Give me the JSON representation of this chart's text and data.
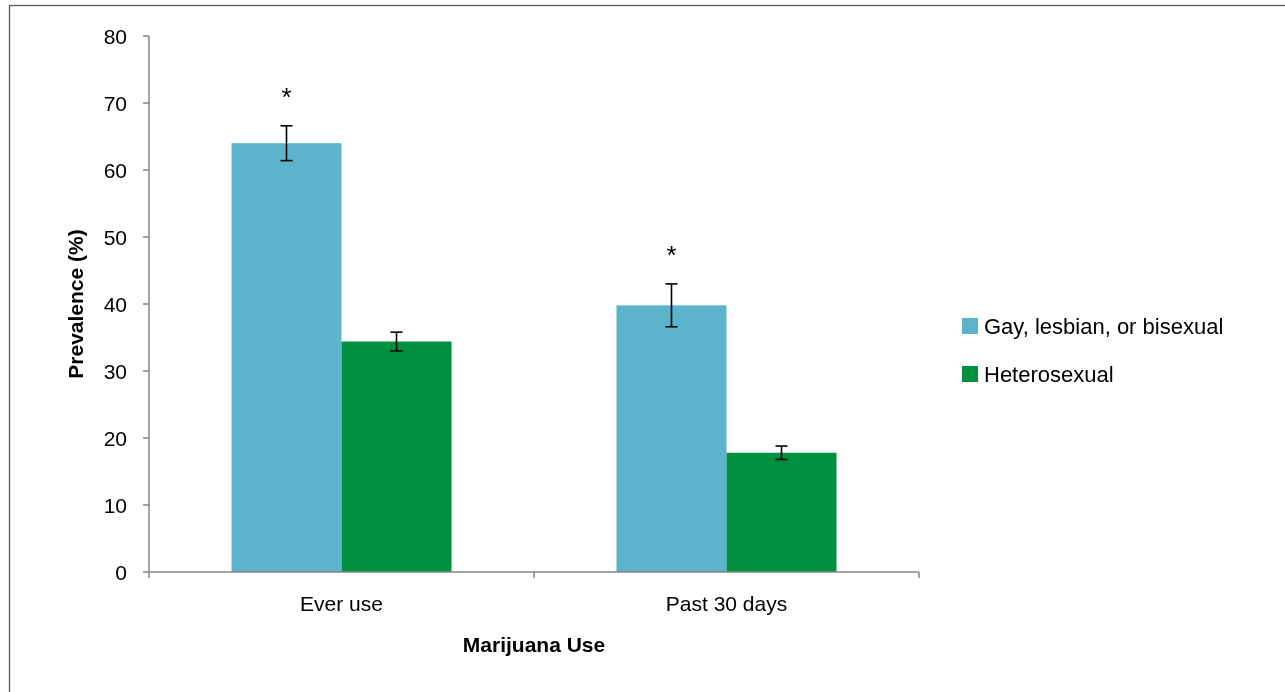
{
  "chart_data": {
    "type": "bar",
    "xlabel": "Marijuana Use",
    "ylabel": "Prevalence (%)",
    "categories": [
      "Ever use",
      "Past 30 days"
    ],
    "series": [
      {
        "name": "Gay, lesbian, or bisexual",
        "color": "#5bb3cc",
        "values": [
          64.0,
          39.8
        ],
        "errors": [
          2.6,
          3.2
        ]
      },
      {
        "name": "Heterosexual",
        "color": "#009040",
        "values": [
          34.4,
          17.8
        ],
        "errors": [
          1.4,
          1.0
        ]
      }
    ],
    "ylim": [
      0,
      80
    ],
    "yticks": [
      0,
      10,
      20,
      30,
      40,
      50,
      60,
      70,
      80
    ],
    "grid": false,
    "legend": "right",
    "annotations": [
      "*",
      "*"
    ]
  }
}
